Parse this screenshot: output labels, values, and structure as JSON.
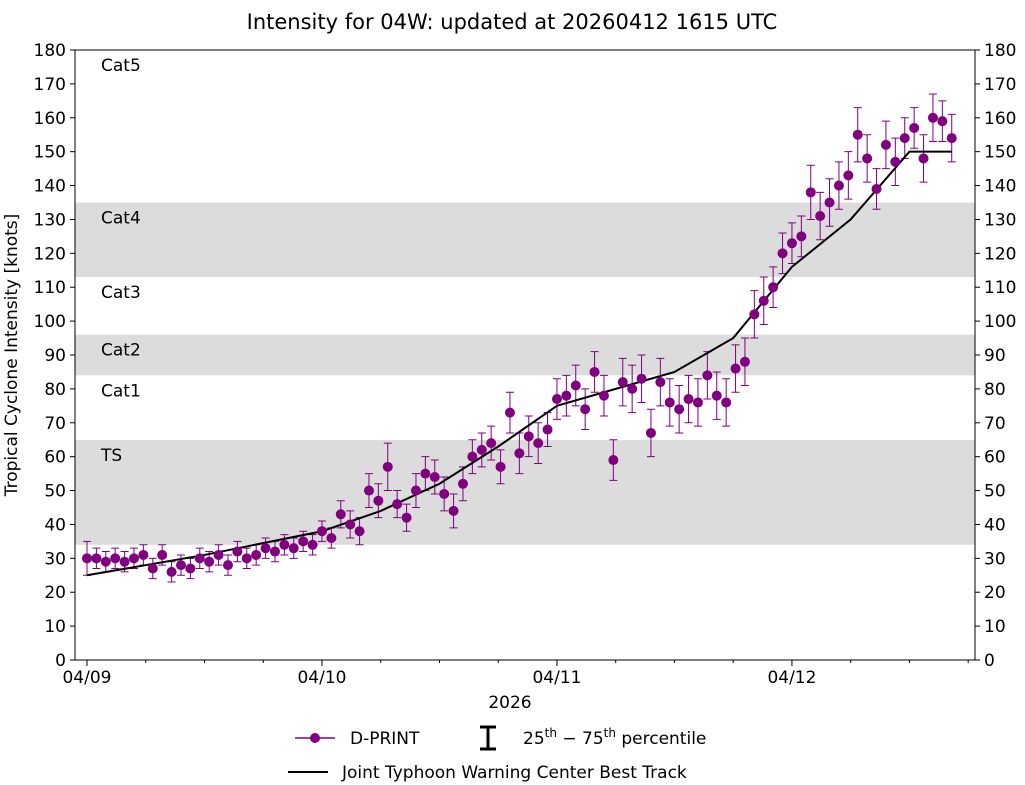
{
  "chart_data": {
    "type": "scatter",
    "title": "Intensity for 04W: updated at 20260412 1615 UTC",
    "xlabel": "2026",
    "ylabel": "Tropical Cyclone Intensity [knots]",
    "xlim": [
      -0.051,
      3.779
    ],
    "xticks": [
      {
        "value": 0,
        "label": "04/09"
      },
      {
        "value": 1,
        "label": "04/10"
      },
      {
        "value": 2,
        "label": "04/11"
      },
      {
        "value": 3,
        "label": "04/12"
      }
    ],
    "xminor_ticks": [
      0.25,
      0.5,
      0.75,
      1.25,
      1.5,
      1.75,
      2.25,
      2.5,
      2.75,
      3.25,
      3.5,
      3.75
    ],
    "ylim": [
      0,
      180
    ],
    "yticks": [
      0,
      10,
      20,
      30,
      40,
      50,
      60,
      70,
      80,
      90,
      100,
      110,
      120,
      130,
      140,
      150,
      160,
      170,
      180
    ],
    "bands": [
      {
        "label": "TS",
        "low": 34,
        "high": 64.9,
        "shaded": true
      },
      {
        "label": "Cat1",
        "low": 64.9,
        "high": 84,
        "shaded": false
      },
      {
        "label": "Cat2",
        "low": 84,
        "high": 96,
        "shaded": true
      },
      {
        "label": "Cat3",
        "low": 96,
        "high": 113,
        "shaded": false
      },
      {
        "label": "Cat4",
        "low": 113,
        "high": 135,
        "shaded": true
      },
      {
        "label": "Cat5",
        "low": 135,
        "high": 180,
        "shaded": false
      }
    ],
    "band_color": "#dcdcdc",
    "series": [
      {
        "name": "D-PRINT",
        "color": "#800080",
        "x": [
          0,
          0.04,
          0.08,
          0.12,
          0.16,
          0.2,
          0.24,
          0.28,
          0.32,
          0.36,
          0.4,
          0.44,
          0.48,
          0.52,
          0.56,
          0.6,
          0.64,
          0.68,
          0.72,
          0.76,
          0.8,
          0.84,
          0.88,
          0.92,
          0.96,
          1,
          1.04,
          1.08,
          1.12,
          1.16,
          1.2,
          1.24,
          1.28,
          1.32,
          1.36,
          1.4,
          1.44,
          1.48,
          1.52,
          1.56,
          1.6,
          1.64,
          1.68,
          1.72,
          1.76,
          1.8,
          1.84,
          1.88,
          1.92,
          1.96,
          2,
          2.04,
          2.08,
          2.12,
          2.16,
          2.2,
          2.24,
          2.28,
          2.32,
          2.36,
          2.4,
          2.44,
          2.48,
          2.52,
          2.56,
          2.6,
          2.64,
          2.68,
          2.72,
          2.76,
          2.8,
          2.84,
          2.88,
          2.92,
          2.96,
          3,
          3.04,
          3.08,
          3.12,
          3.16,
          3.2,
          3.24,
          3.28,
          3.32,
          3.36,
          3.4,
          3.44,
          3.48,
          3.52,
          3.56,
          3.6,
          3.64,
          3.68
        ],
        "values": [
          30,
          30,
          29,
          30,
          29,
          30,
          31,
          27,
          31,
          26,
          28,
          27,
          30,
          29,
          31,
          28,
          32,
          30,
          31,
          33,
          32,
          34,
          33,
          35,
          34,
          38,
          36,
          43,
          40,
          38,
          50,
          47,
          57,
          46,
          42,
          50,
          55,
          54,
          49,
          44,
          52,
          60,
          62,
          64,
          57,
          73,
          61,
          66,
          64,
          68,
          77,
          78,
          81,
          74,
          85,
          78,
          59,
          82,
          80,
          83,
          67,
          82,
          76,
          74,
          77,
          76,
          84,
          78,
          76,
          86,
          88,
          102,
          106,
          110,
          120,
          123,
          125,
          138,
          131,
          135,
          140,
          143,
          155,
          148,
          139,
          152,
          147,
          154,
          157,
          148,
          160,
          159,
          154
        ],
        "errors": [
          5,
          3,
          3,
          3,
          3,
          3,
          3,
          3,
          3,
          3,
          3,
          3,
          3,
          3,
          3,
          3,
          3,
          3,
          3,
          3,
          3,
          3,
          3,
          3,
          3,
          3,
          3,
          4,
          4,
          4,
          5,
          5,
          7,
          4,
          4,
          5,
          5,
          5,
          5,
          5,
          5,
          5,
          5,
          5,
          5,
          6,
          6,
          6,
          6,
          5,
          6,
          6,
          6,
          6,
          6,
          6,
          6,
          7,
          7,
          7,
          7,
          7,
          7,
          7,
          7,
          7,
          7,
          7,
          7,
          7,
          7,
          7,
          7,
          6,
          6,
          6,
          6,
          8,
          7,
          7,
          7,
          7,
          8,
          7,
          6,
          7,
          7,
          6,
          6,
          7,
          7,
          6,
          7
        ]
      },
      {
        "name": "Joint Typhoon Warning Center Best Track",
        "color": "#000000",
        "x": [
          0,
          0.5,
          1,
          1.25,
          1.5,
          1.75,
          2,
          2.25,
          2.5,
          2.75,
          3,
          3.25,
          3.5,
          3.68
        ],
        "values": [
          25,
          31,
          38,
          44,
          52,
          63,
          75,
          80,
          85,
          95,
          116,
          130,
          150,
          150
        ]
      }
    ],
    "percentile_label": [
      "25",
      "th",
      " − 75",
      "th",
      " percentile"
    ]
  }
}
